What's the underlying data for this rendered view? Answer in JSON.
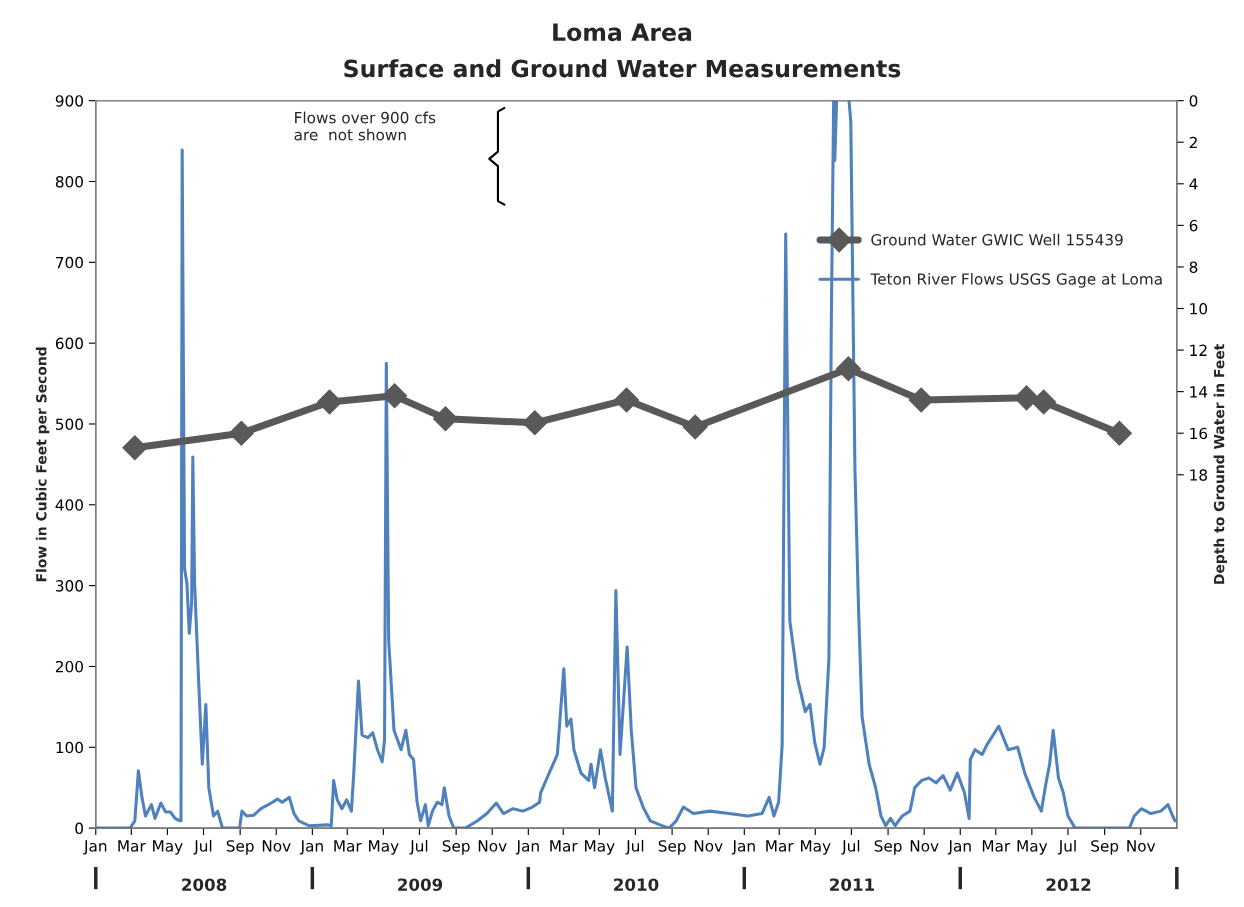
{
  "chart_data": {
    "type": "line",
    "title": "Loma Area",
    "subtitle": "Surface and Ground Water Measurements",
    "ylabel": "Flow in Cubic Feet per Second",
    "y2label": "Depth to Ground Water in Feet",
    "annotations": [
      "Flows over 900 cfs\nare  not shown"
    ],
    "xlim": [
      "2008-01-01",
      "2013-01-01"
    ],
    "xticks": [
      {
        "value": "2008-01-01",
        "label": "Jan"
      },
      {
        "value": "2008-03-01",
        "label": "Mar"
      },
      {
        "value": "2008-05-01",
        "label": "May"
      },
      {
        "value": "2008-07-01",
        "label": "Jul"
      },
      {
        "value": "2008-09-01",
        "label": "Sep"
      },
      {
        "value": "2008-11-01",
        "label": "Nov"
      },
      {
        "value": "2009-01-01",
        "label": "Jan"
      },
      {
        "value": "2009-03-01",
        "label": "Mar"
      },
      {
        "value": "2009-05-01",
        "label": "May"
      },
      {
        "value": "2009-07-01",
        "label": "Jul"
      },
      {
        "value": "2009-09-01",
        "label": "Sep"
      },
      {
        "value": "2009-11-01",
        "label": "Nov"
      },
      {
        "value": "2010-01-01",
        "label": "Jan"
      },
      {
        "value": "2010-03-01",
        "label": "Mar"
      },
      {
        "value": "2010-05-01",
        "label": "May"
      },
      {
        "value": "2010-07-01",
        "label": "Jul"
      },
      {
        "value": "2010-09-01",
        "label": "Sep"
      },
      {
        "value": "2010-11-01",
        "label": "Nov"
      },
      {
        "value": "2011-01-01",
        "label": "Jan"
      },
      {
        "value": "2011-03-01",
        "label": "Mar"
      },
      {
        "value": "2011-05-01",
        "label": "May"
      },
      {
        "value": "2011-07-01",
        "label": "Jul"
      },
      {
        "value": "2011-09-01",
        "label": "Sep"
      },
      {
        "value": "2011-11-01",
        "label": "Nov"
      },
      {
        "value": "2012-01-01",
        "label": "Jan"
      },
      {
        "value": "2012-03-01",
        "label": "Mar"
      },
      {
        "value": "2012-05-01",
        "label": "May"
      },
      {
        "value": "2012-07-01",
        "label": "Jul"
      },
      {
        "value": "2012-09-01",
        "label": "Sep"
      },
      {
        "value": "2012-11-01",
        "label": "Nov"
      }
    ],
    "x2lim": [
      "2008-01-01",
      "2013-01-01"
    ],
    "x2ticks": [
      {
        "value": "2008-01-01",
        "label": null
      },
      {
        "value": "2008-07-02",
        "label": "2008"
      },
      {
        "value": "2009-01-01",
        "label": null
      },
      {
        "value": "2009-07-02",
        "label": "2009"
      },
      {
        "value": "2010-01-01",
        "label": null
      },
      {
        "value": "2010-07-02",
        "label": "2010"
      },
      {
        "value": "2011-01-01",
        "label": null
      },
      {
        "value": "2011-07-02",
        "label": "2011"
      },
      {
        "value": "2012-01-01",
        "label": null
      },
      {
        "value": "2012-07-02",
        "label": "2012"
      },
      {
        "value": "2013-01-01",
        "label": null
      }
    ],
    "ylim": [
      0,
      900
    ],
    "yticks": [
      0,
      100,
      200,
      300,
      400,
      500,
      600,
      700,
      800,
      900
    ],
    "y2lim": [
      35,
      0
    ],
    "y2ticks": [
      0,
      2,
      4,
      6,
      8,
      10,
      12,
      14,
      16,
      18
    ],
    "grid": false,
    "legend": "right",
    "series": [
      {
        "name": "Ground Water GWIC Well 155439",
        "color": "#595959",
        "axis": "y2",
        "marker": "diamond",
        "x": [
          "2008-03-07",
          "2008-09-03",
          "2009-01-30",
          "2009-05-20",
          "2009-08-14",
          "2010-01-12",
          "2010-06-16",
          "2010-10-10",
          "2011-06-26",
          "2011-10-27",
          "2012-04-22",
          "2012-05-21",
          "2012-09-26"
        ],
        "values": [
          16.7,
          16.0,
          14.5,
          14.2,
          15.3,
          15.5,
          14.4,
          15.7,
          12.9,
          14.4,
          14.3,
          14.5,
          16.0
        ]
      },
      {
        "name": "Teton River Flows USGS Gage at Loma",
        "color": "#4f81bd",
        "axis": "y",
        "marker": "none",
        "x": [
          "2008-01-01",
          "2008-02-28",
          "2008-03-07",
          "2008-03-13",
          "2008-03-19",
          "2008-03-25",
          "2008-04-04",
          "2008-04-10",
          "2008-04-20",
          "2008-04-28",
          "2008-05-06",
          "2008-05-14",
          "2008-05-22",
          "2008-05-24",
          "2008-05-26",
          "2008-05-30",
          "2008-06-03",
          "2008-06-07",
          "2008-06-11",
          "2008-06-13",
          "2008-06-16",
          "2008-06-23",
          "2008-06-29",
          "2008-07-05",
          "2008-07-10",
          "2008-07-18",
          "2008-07-25",
          "2008-08-02",
          "2008-08-31",
          "2008-09-04",
          "2008-09-12",
          "2008-09-24",
          "2008-10-06",
          "2008-10-26",
          "2008-11-03",
          "2008-11-11",
          "2008-11-23",
          "2008-12-01",
          "2008-12-09",
          "2008-12-26",
          "2009-01-27",
          "2009-02-02",
          "2009-02-06",
          "2009-02-12",
          "2009-02-20",
          "2009-02-28",
          "2009-03-08",
          "2009-03-12",
          "2009-03-20",
          "2009-03-26",
          "2009-04-05",
          "2009-04-13",
          "2009-04-21",
          "2009-04-29",
          "2009-05-03",
          "2009-05-06",
          "2009-05-10",
          "2009-05-19",
          "2009-05-31",
          "2009-06-08",
          "2009-06-14",
          "2009-06-21",
          "2009-06-27",
          "2009-07-03",
          "2009-07-11",
          "2009-07-16",
          "2009-07-23",
          "2009-07-31",
          "2009-08-08",
          "2009-08-12",
          "2009-08-20",
          "2009-08-28",
          "2009-09-17",
          "2009-10-07",
          "2009-10-23",
          "2009-11-08",
          "2009-11-20",
          "2009-12-06",
          "2009-12-23",
          "2010-01-08",
          "2010-01-20",
          "2010-01-22",
          "2010-02-07",
          "2010-02-19",
          "2010-03-02",
          "2010-03-07",
          "2010-03-14",
          "2010-03-19",
          "2010-03-31",
          "2010-04-13",
          "2010-04-17",
          "2010-04-23",
          "2010-05-03",
          "2010-05-11",
          "2010-05-23",
          "2010-05-29",
          "2010-06-05",
          "2010-06-17",
          "2010-06-24",
          "2010-07-02",
          "2010-07-14",
          "2010-07-26",
          "2010-08-15",
          "2010-08-27",
          "2010-09-08",
          "2010-09-20",
          "2010-10-07",
          "2010-11-04",
          "2010-12-06",
          "2011-01-07",
          "2011-01-31",
          "2011-02-12",
          "2011-02-20",
          "2011-02-28",
          "2011-03-06",
          "2011-03-12",
          "2011-03-19",
          "2011-04-01",
          "2011-04-14",
          "2011-04-22",
          "2011-04-30",
          "2011-05-09",
          "2011-05-16",
          "2011-05-24",
          "2011-05-28",
          "2011-06-01",
          "2011-06-03",
          "2011-06-06",
          "2011-06-15",
          "2011-06-27",
          "2011-06-30",
          "2011-07-07",
          "2011-07-13",
          "2011-07-19",
          "2011-07-31",
          "2011-08-11",
          "2011-08-20",
          "2011-08-28",
          "2011-09-05",
          "2011-09-13",
          "2011-09-25",
          "2011-10-08",
          "2011-10-16",
          "2011-10-28",
          "2011-11-09",
          "2011-11-21",
          "2011-12-03",
          "2011-12-15",
          "2011-12-27",
          "2012-01-08",
          "2012-01-16",
          "2012-01-18",
          "2012-01-26",
          "2012-02-07",
          "2012-02-15",
          "2012-03-06",
          "2012-03-22",
          "2012-04-07",
          "2012-04-19",
          "2012-05-05",
          "2012-05-17",
          "2012-05-25",
          "2012-05-31",
          "2012-06-06",
          "2012-06-15",
          "2012-06-23",
          "2012-07-01",
          "2012-07-13",
          "2012-10-13",
          "2012-10-21",
          "2012-11-02",
          "2012-11-18",
          "2012-12-05",
          "2012-12-17",
          "2012-12-25",
          "2012-12-29"
        ],
        "values": [
          0,
          0,
          9,
          71,
          38,
          15,
          29,
          12,
          31,
          20,
          20,
          12,
          9,
          9,
          839,
          321,
          303,
          241,
          279,
          459,
          303,
          179,
          79,
          153,
          50,
          15,
          21,
          0,
          0,
          21,
          15,
          16,
          24,
          32,
          36,
          32,
          38,
          18,
          9,
          3,
          4,
          3,
          59,
          35,
          24,
          35,
          21,
          68,
          182,
          115,
          112,
          118,
          97,
          82,
          109,
          575,
          232,
          121,
          97,
          121,
          91,
          85,
          32,
          9,
          29,
          3,
          21,
          32,
          29,
          50,
          15,
          0,
          0,
          9,
          18,
          31,
          18,
          24,
          21,
          26,
          32,
          44,
          71,
          91,
          197,
          126,
          135,
          97,
          68,
          59,
          79,
          50,
          97,
          62,
          21,
          294,
          91,
          224,
          121,
          50,
          26,
          9,
          3,
          0,
          9,
          26,
          18,
          21,
          18,
          15,
          18,
          38,
          15,
          32,
          103,
          735,
          256,
          185,
          144,
          153,
          106,
          79,
          100,
          209,
          620,
          900,
          826,
          900,
          null,
          900,
          874,
          444,
          274,
          138,
          79,
          50,
          15,
          3,
          12,
          3,
          15,
          21,
          50,
          59,
          62,
          56,
          65,
          47,
          68,
          44,
          12,
          85,
          97,
          91,
          103,
          126,
          97,
          100,
          68,
          38,
          21,
          56,
          79,
          121,
          62,
          44,
          15,
          0,
          0,
          15,
          24,
          18,
          21,
          29,
          15,
          9
        ]
      }
    ]
  }
}
